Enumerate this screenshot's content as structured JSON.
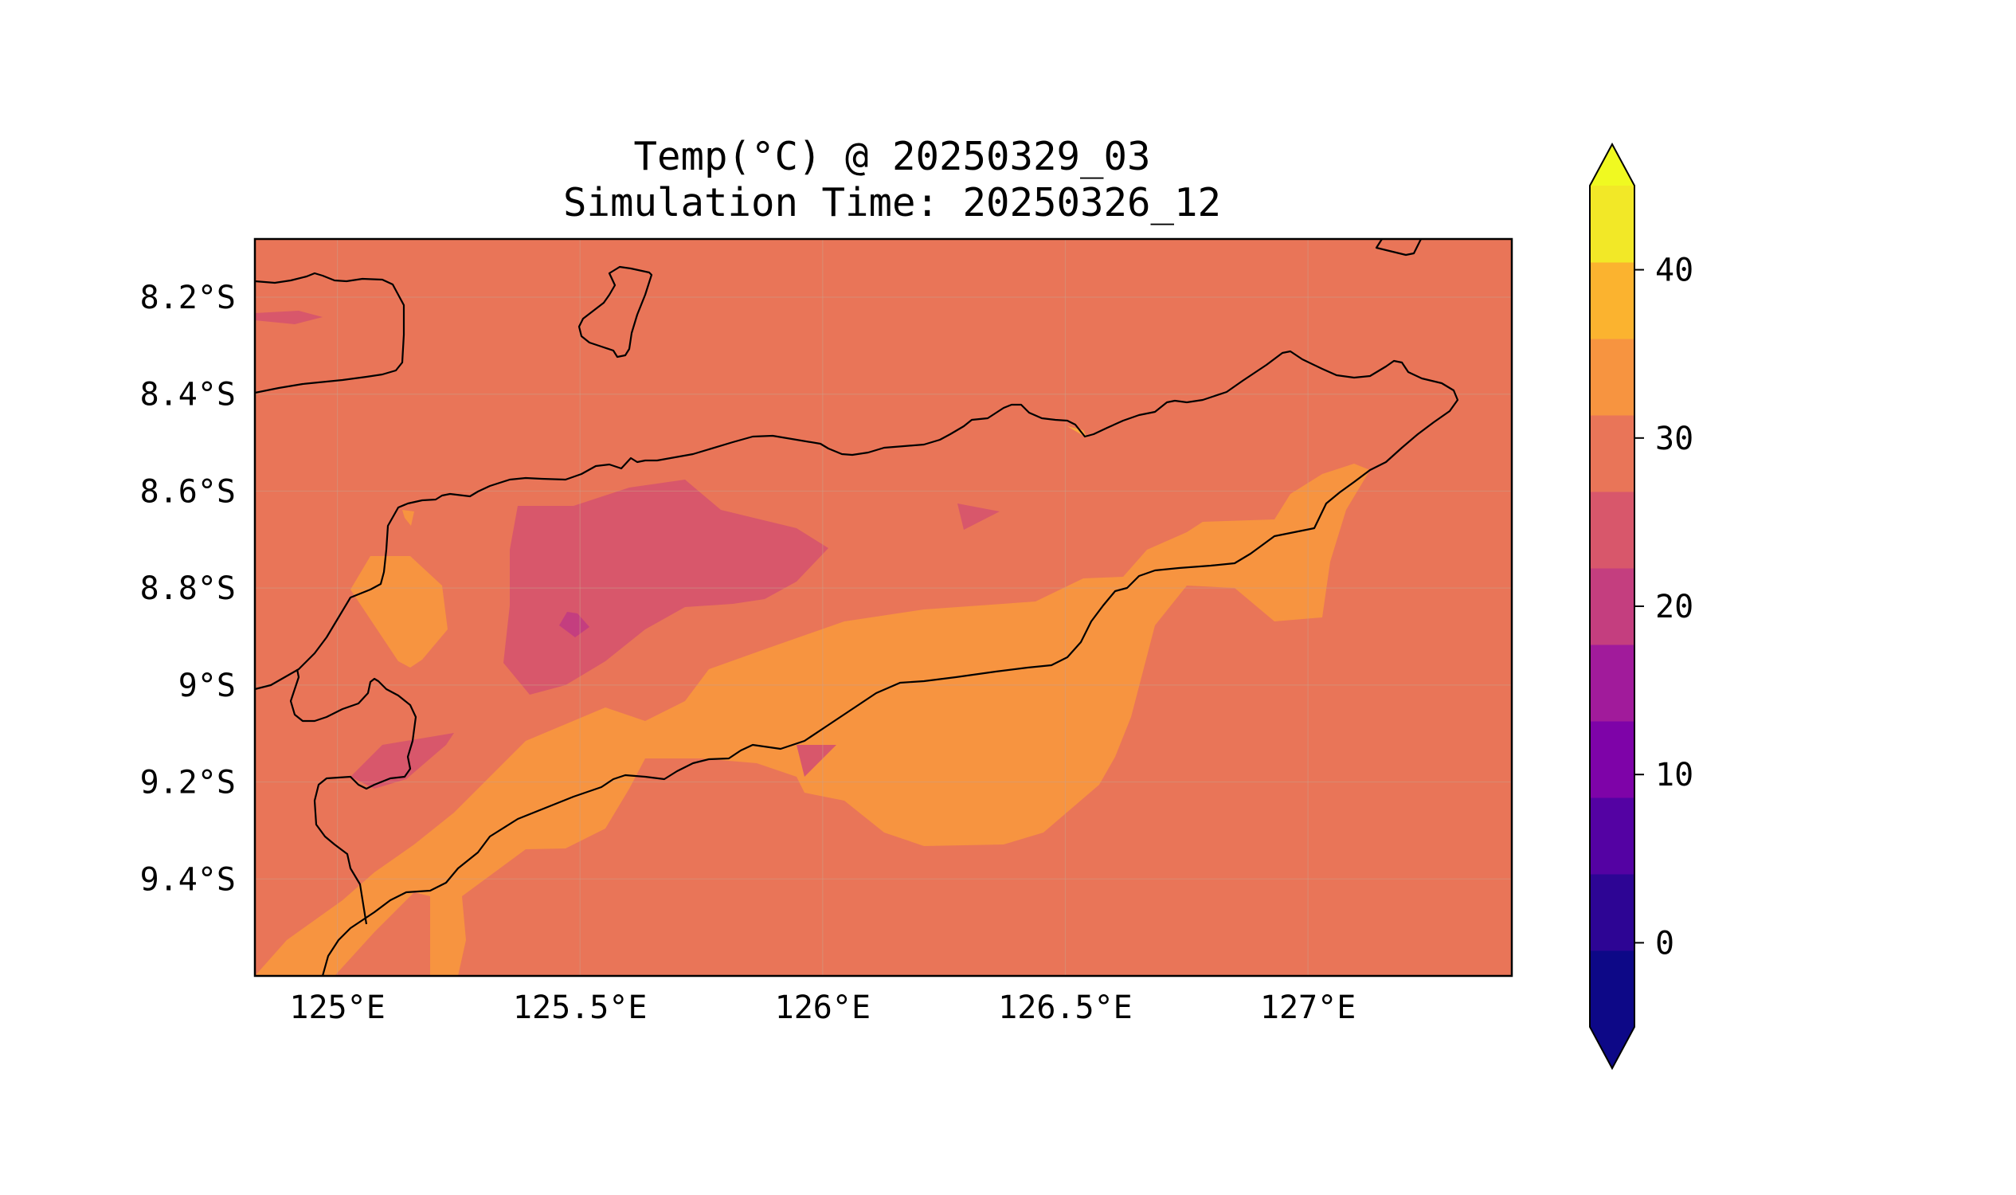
{
  "title": "Temp(°C) @ 20250329_03",
  "subtitle": "Simulation Time: 20250326_12",
  "map": {
    "x_ticks": [
      "125°E",
      "125.5°E",
      "126°E",
      "126.5°E",
      "127°E"
    ],
    "y_ticks": [
      "8.2°S",
      "8.4°S",
      "8.6°S",
      "8.8°S",
      "9°S",
      "9.2°S",
      "9.4°S"
    ],
    "x_tick_values": [
      125.0,
      125.5,
      126.0,
      126.5,
      127.0
    ],
    "y_tick_values": [
      -8.2,
      -8.4,
      -8.6,
      -8.8,
      -9.0,
      -9.2,
      -9.4
    ],
    "extent": {
      "lon": [
        124.83,
        127.42
      ],
      "lat": [
        -9.6,
        -8.08
      ]
    },
    "grid": true,
    "background_level_range": [
      25,
      30
    ],
    "colors": {
      "background": "#e97558",
      "warm": "#f79440",
      "warmer": "#f9a73f",
      "cool": "#d8576b",
      "cooler": "#c43e7f",
      "coastline": "#000000"
    }
  },
  "colorbar": {
    "ticks": [
      "40",
      "30",
      "20",
      "10",
      "0"
    ],
    "tick_values": [
      40,
      30,
      20,
      10,
      0
    ],
    "levels": [
      -5,
      0,
      5,
      10,
      15,
      20,
      25,
      30,
      35,
      40,
      45
    ],
    "colors": [
      "#0d0887",
      "#2d0594",
      "#5402a3",
      "#7e03a8",
      "#a11b9b",
      "#c43e7f",
      "#d8576b",
      "#e97558",
      "#f79440",
      "#fbb32f",
      "#f2e827"
    ],
    "extend": "both"
  }
}
